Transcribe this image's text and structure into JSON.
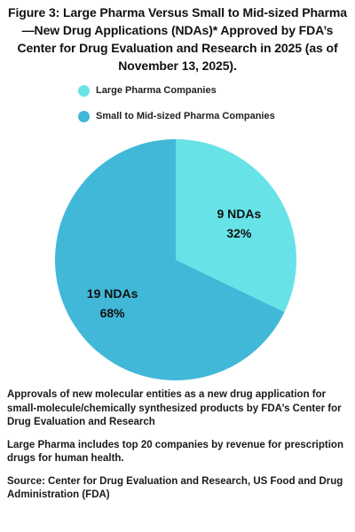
{
  "title": "Figure 3: Large Pharma Versus Small to Mid-sized Pharma—New Drug Applications (NDAs)* Approved by FDA’s Center for Drug Evaluation and Research in 2025 (as of November 13, 2025).",
  "chart_data": {
    "type": "pie",
    "title": "Figure 3: Large Pharma Versus Small to Mid-sized Pharma—New Drug Applications (NDAs)* Approved by FDA’s Center for Drug Evaluation and Research in 2025 (as of November 13, 2025).",
    "legend_position": "top-left",
    "slices": [
      {
        "name": "Large Pharma Companies",
        "value": 9,
        "percent": 32,
        "label_count": "9 NDAs",
        "label_percent": "32%",
        "color": "#67e3e8"
      },
      {
        "name": "Small to Mid-sized Pharma Companies",
        "value": 19,
        "percent": 68,
        "label_count": "19 NDAs",
        "label_percent": "68%",
        "color": "#41b8d8"
      }
    ]
  },
  "notes": [
    "Approvals of new molecular entities as a new drug application for small-molecule/chemically synthesized products by FDA’s Center for Drug Evaluation and Research",
    "Large Pharma includes top 20 companies by revenue for prescription drugs for human health.",
    "Source: Center for Drug Evaluation and Research, US Food and Drug Administration (FDA)"
  ]
}
